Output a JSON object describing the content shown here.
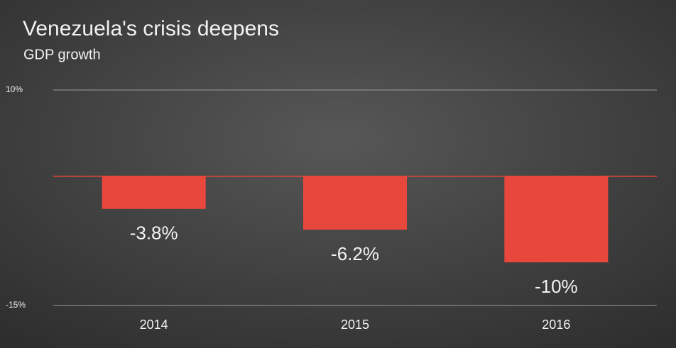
{
  "chart_data": {
    "type": "bar",
    "title": "Venezuela's crisis deepens",
    "subtitle": "GDP growth",
    "categories": [
      "2014",
      "2015",
      "2016"
    ],
    "values": [
      -3.8,
      -6.2,
      -10
    ],
    "value_labels": [
      "-3.8%",
      "-6.2%",
      "-10%"
    ],
    "color": "#e8473c",
    "ylim": [
      -15,
      10
    ],
    "yticks": [
      {
        "value": 10,
        "label": "10%"
      },
      {
        "value": -15,
        "label": "-15%"
      }
    ],
    "grid": true
  }
}
